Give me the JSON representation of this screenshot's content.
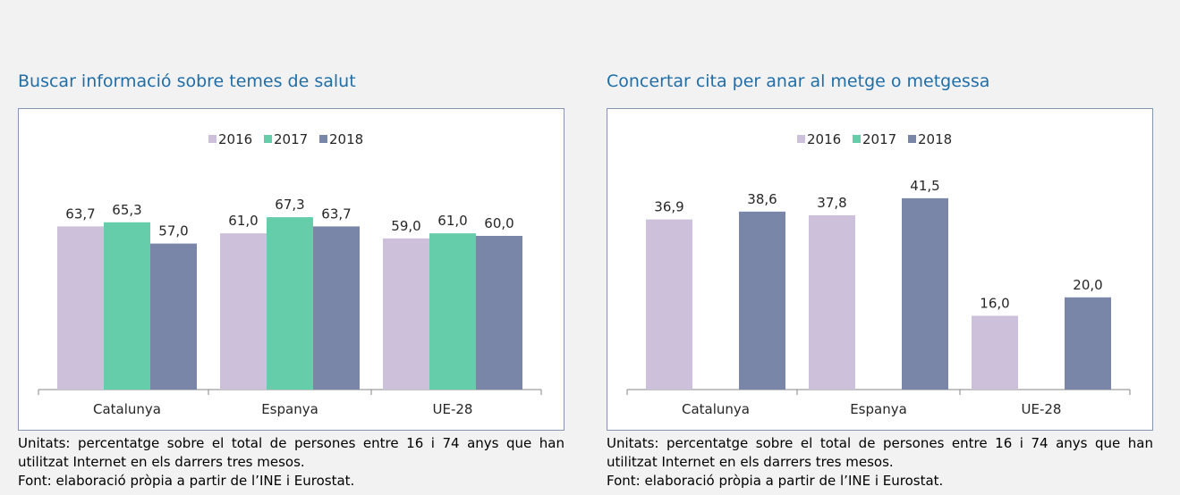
{
  "chart_data": [
    {
      "type": "bar",
      "title": "Buscar informació sobre temes de salut",
      "categories": [
        "Catalunya",
        "Espanya",
        "UE-28"
      ],
      "series": [
        {
          "name": "2016",
          "color": "#ccc0da",
          "values": [
            63.7,
            61.0,
            59.0
          ],
          "value_labels": [
            "63,7",
            "61,0",
            "59,0"
          ]
        },
        {
          "name": "2017",
          "color": "#66cdaa",
          "values": [
            65.3,
            67.3,
            61.0
          ],
          "value_labels": [
            "65,3",
            "67,3",
            "61,0"
          ]
        },
        {
          "name": "2018",
          "color": "#7a86a8",
          "values": [
            57.0,
            63.7,
            60.0
          ],
          "value_labels": [
            "57,0",
            "63,7",
            "60,0"
          ]
        }
      ],
      "ylim": [
        0,
        90
      ],
      "notes": [
        "Unitats: percentatge sobre el total de persones entre 16 i 74 anys que han utilitzat Internet en els darrers tres mesos.",
        "Font: elaboració pròpia a partir de l’INE i Eurostat."
      ]
    },
    {
      "type": "bar",
      "title": "Concertar cita per anar al metge o metgessa",
      "categories": [
        "Catalunya",
        "Espanya",
        "UE-28"
      ],
      "series": [
        {
          "name": "2016",
          "color": "#ccc0da",
          "values": [
            36.9,
            37.8,
            16.0
          ],
          "value_labels": [
            "36,9",
            "37,8",
            "16,0"
          ]
        },
        {
          "name": "2017",
          "color": "#66cdaa",
          "values": [
            null,
            null,
            null
          ]
        },
        {
          "name": "2018",
          "color": "#7a86a8",
          "values": [
            38.6,
            41.5,
            20.0
          ],
          "value_labels": [
            "38,6",
            "41,5",
            "20,0"
          ]
        }
      ],
      "ylim": [
        0,
        50
      ],
      "notes": [
        "Unitats: percentatge sobre el total de persones entre 16 i 74 anys que han utilitzat Internet en els darrers tres mesos.",
        "Font: elaboració pròpia a partir de l’INE i Eurostat."
      ]
    }
  ]
}
